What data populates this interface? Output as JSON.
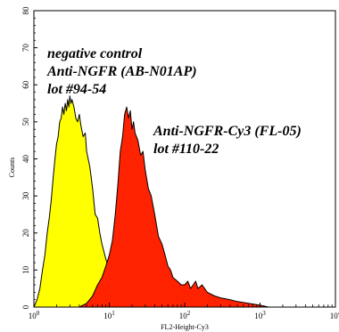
{
  "chart_data": {
    "type": "area",
    "xlabel": "FL2-Height-Cy3",
    "ylabel": "Counts",
    "x_scale": "log",
    "xlim": [
      1,
      10000
    ],
    "ylim": [
      0,
      80
    ],
    "x_ticks": [
      {
        "value": 1,
        "base": "10",
        "exp": "0"
      },
      {
        "value": 10,
        "base": "10",
        "exp": "1"
      },
      {
        "value": 100,
        "base": "10",
        "exp": "2"
      },
      {
        "value": 1000,
        "base": "10",
        "exp": "3"
      },
      {
        "value": 10000,
        "base": "10",
        "exp": "4"
      }
    ],
    "y_ticks": [
      {
        "value": 0,
        "label": "0"
      },
      {
        "value": 10,
        "label": "10"
      },
      {
        "value": 20,
        "label": "20"
      },
      {
        "value": 30,
        "label": "30"
      },
      {
        "value": 40,
        "label": "40"
      },
      {
        "value": 50,
        "label": "50"
      },
      {
        "value": 60,
        "label": "60"
      },
      {
        "value": 70,
        "label": "70"
      },
      {
        "value": 80,
        "label": "80"
      }
    ],
    "grid": false,
    "series": [
      {
        "fill": "#ffff00",
        "points": [
          [
            1.0,
            0
          ],
          [
            1.1,
            2
          ],
          [
            1.2,
            5
          ],
          [
            1.3,
            10
          ],
          [
            1.4,
            14
          ],
          [
            1.5,
            20
          ],
          [
            1.6,
            24
          ],
          [
            1.7,
            29
          ],
          [
            1.8,
            35
          ],
          [
            1.9,
            40
          ],
          [
            2.0,
            44
          ],
          [
            2.1,
            46
          ],
          [
            2.2,
            50
          ],
          [
            2.3,
            51
          ],
          [
            2.4,
            54
          ],
          [
            2.5,
            52
          ],
          [
            2.6,
            55
          ],
          [
            2.7,
            53
          ],
          [
            2.8,
            56
          ],
          [
            2.9,
            54
          ],
          [
            3.0,
            57
          ],
          [
            3.1,
            55
          ],
          [
            3.2,
            56
          ],
          [
            3.4,
            54
          ],
          [
            3.6,
            51
          ],
          [
            3.8,
            50
          ],
          [
            4.0,
            52
          ],
          [
            4.2,
            49
          ],
          [
            4.5,
            46
          ],
          [
            4.8,
            47
          ],
          [
            5.0,
            42
          ],
          [
            5.5,
            38
          ],
          [
            6.0,
            32
          ],
          [
            6.5,
            25
          ],
          [
            7.0,
            24
          ],
          [
            7.5,
            20
          ],
          [
            8.0,
            17
          ],
          [
            8.5,
            15
          ],
          [
            9.0,
            13
          ],
          [
            10,
            10
          ],
          [
            11,
            7
          ],
          [
            12,
            6
          ],
          [
            14,
            3
          ],
          [
            16,
            2
          ],
          [
            20,
            1
          ],
          [
            25,
            0.5
          ],
          [
            30,
            0
          ]
        ]
      },
      {
        "fill": "#ff2200",
        "points": [
          [
            4.0,
            0
          ],
          [
            5.0,
            1
          ],
          [
            6.0,
            3
          ],
          [
            7.0,
            6
          ],
          [
            8.0,
            8
          ],
          [
            9.0,
            11
          ],
          [
            10,
            14
          ],
          [
            11,
            18
          ],
          [
            12,
            25
          ],
          [
            13,
            33
          ],
          [
            14,
            42
          ],
          [
            15,
            46
          ],
          [
            16,
            52
          ],
          [
            17,
            54
          ],
          [
            18,
            51
          ],
          [
            19,
            53
          ],
          [
            20,
            48
          ],
          [
            21,
            50
          ],
          [
            22,
            47
          ],
          [
            24,
            45
          ],
          [
            26,
            41
          ],
          [
            28,
            42
          ],
          [
            30,
            37
          ],
          [
            33,
            32
          ],
          [
            36,
            30
          ],
          [
            40,
            25
          ],
          [
            45,
            19
          ],
          [
            50,
            17
          ],
          [
            55,
            14
          ],
          [
            60,
            11
          ],
          [
            65,
            10
          ],
          [
            70,
            8
          ],
          [
            80,
            7
          ],
          [
            90,
            6
          ],
          [
            100,
            6
          ],
          [
            110,
            7
          ],
          [
            120,
            5
          ],
          [
            130,
            6
          ],
          [
            140,
            7
          ],
          [
            150,
            5
          ],
          [
            170,
            6
          ],
          [
            200,
            4
          ],
          [
            250,
            3
          ],
          [
            300,
            2.5
          ],
          [
            400,
            2
          ],
          [
            500,
            1.5
          ],
          [
            700,
            1
          ],
          [
            1000,
            0.5
          ],
          [
            1300,
            0
          ]
        ]
      }
    ],
    "annotations": [
      {
        "id": "negative",
        "lines": [
          "negative control",
          "Anti-NGFR (AB-N01AP)",
          "lot #94-54"
        ]
      },
      {
        "id": "stained",
        "lines": [
          "Anti-NGFR-Cy3 (FL-05)",
          "lot #110-22"
        ]
      }
    ]
  }
}
